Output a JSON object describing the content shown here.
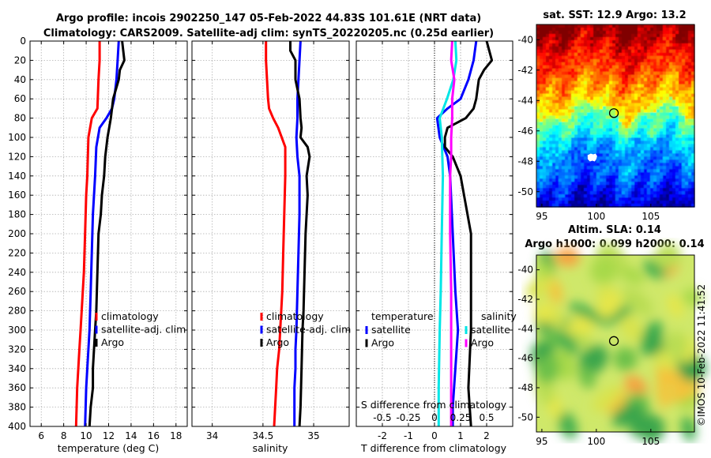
{
  "figure": {
    "title_line1": "Argo profile: incois 2902250_147 05-Feb-2022 44.83S 101.61E (NRT data)",
    "title_line2": "Climatology: CARS2009. Satellite-adj clim: synTS_20220205.nc (0.25d earlier)",
    "credit": "©IMOS 10-Feb-2022 11:41:52"
  },
  "chart_data": [
    {
      "id": "temperature",
      "type": "line",
      "xlabel": "temperature (deg C)",
      "xlim": [
        5,
        19
      ],
      "xticks": [
        6,
        8,
        10,
        12,
        14,
        16,
        18
      ],
      "ylim": [
        0,
        400
      ],
      "yticks": [
        0,
        20,
        40,
        60,
        80,
        100,
        120,
        140,
        160,
        180,
        200,
        220,
        240,
        260,
        280,
        300,
        320,
        340,
        360,
        380,
        400
      ],
      "yreversed": true,
      "grid": true,
      "legend": [
        "climatology",
        "satellite-adj. clim",
        "Argo"
      ],
      "series": [
        {
          "name": "climatology",
          "color": "#ff0000",
          "x": [
            11.2,
            11.2,
            11.1,
            11.0,
            10.5,
            10.2,
            10.1,
            10.0,
            9.9,
            9.8,
            9.7,
            9.6,
            9.5,
            9.4,
            9.3,
            9.2,
            9.1
          ],
          "y": [
            0,
            20,
            40,
            70,
            80,
            100,
            140,
            160,
            200,
            240,
            260,
            280,
            300,
            320,
            340,
            360,
            400
          ]
        },
        {
          "name": "satellite-adj. clim",
          "color": "#0000ff",
          "x": [
            12.9,
            12.8,
            12.7,
            12.5,
            12.3,
            11.8,
            11.2,
            10.9,
            10.8,
            10.6,
            10.5,
            10.4,
            10.3,
            10.2,
            10.1,
            10.0,
            9.9
          ],
          "y": [
            0,
            20,
            40,
            60,
            70,
            80,
            90,
            110,
            140,
            180,
            220,
            260,
            300,
            320,
            340,
            360,
            400
          ]
        },
        {
          "name": "Argo",
          "color": "#000000",
          "x": [
            13.2,
            13.3,
            13.4,
            13.0,
            12.9,
            12.4,
            12.2,
            11.9,
            11.7,
            11.6,
            11.4,
            11.3,
            11.1,
            11.0,
            10.9,
            10.8,
            10.7,
            10.6,
            10.6,
            10.4,
            10.3
          ],
          "y": [
            0,
            10,
            20,
            30,
            40,
            60,
            80,
            100,
            120,
            140,
            160,
            180,
            200,
            240,
            280,
            300,
            320,
            340,
            360,
            380,
            400
          ]
        }
      ]
    },
    {
      "id": "salinity",
      "type": "line",
      "xlabel": "salinity",
      "xlim": [
        33.8,
        35.35
      ],
      "xticks": [
        34,
        34.5,
        35
      ],
      "xticklabels": [
        "34",
        "34.5",
        "35"
      ],
      "ylim": [
        0,
        400
      ],
      "yreversed": true,
      "grid": true,
      "legend": [
        "climatology",
        "satellite-adj. clim",
        "Argo"
      ],
      "series": [
        {
          "name": "climatology",
          "color": "#ff0000",
          "x": [
            34.53,
            34.53,
            34.54,
            34.55,
            34.56,
            34.6,
            34.65,
            34.72,
            34.72,
            34.71,
            34.7,
            34.69,
            34.68,
            34.67,
            34.66,
            34.64,
            34.63,
            34.62,
            34.61
          ],
          "y": [
            0,
            20,
            40,
            60,
            70,
            80,
            90,
            110,
            140,
            180,
            220,
            260,
            280,
            300,
            320,
            340,
            360,
            380,
            400
          ]
        },
        {
          "name": "satellite-adj. clim",
          "color": "#0000ff",
          "x": [
            34.87,
            34.86,
            34.85,
            34.84,
            34.84,
            34.83,
            34.84,
            34.86,
            34.86,
            34.85,
            34.84,
            34.83,
            34.82,
            34.82,
            34.81,
            34.81
          ],
          "y": [
            0,
            20,
            40,
            60,
            80,
            100,
            120,
            140,
            180,
            220,
            260,
            300,
            320,
            340,
            360,
            400
          ]
        },
        {
          "name": "Argo",
          "color": "#000000",
          "x": [
            34.77,
            34.77,
            34.82,
            34.82,
            34.86,
            34.87,
            34.88,
            34.87,
            34.94,
            34.96,
            34.93,
            34.94,
            34.93,
            34.92,
            34.91,
            34.9,
            34.89,
            34.88,
            34.87,
            34.86
          ],
          "y": [
            0,
            10,
            20,
            40,
            60,
            80,
            90,
            100,
            110,
            120,
            140,
            160,
            180,
            200,
            240,
            280,
            300,
            340,
            380,
            400
          ]
        }
      ]
    },
    {
      "id": "difference",
      "type": "line",
      "xlabel": "T difference from climatology",
      "xlabel_top": "S difference from climatology",
      "xlim": [
        -3,
        3
      ],
      "xticks": [
        -2,
        -1,
        0,
        1,
        2
      ],
      "xticks_top": [
        -0.5,
        -0.25,
        0,
        0.25,
        0.5
      ],
      "xticklabels_top": [
        "-0.5",
        "-0.25",
        "0",
        "0.25",
        "0.5"
      ],
      "ylim": [
        0,
        400
      ],
      "yreversed": true,
      "grid": true,
      "zero_line": true,
      "legend_left": {
        "title": "temperature",
        "items": [
          "satellite",
          "Argo"
        ]
      },
      "legend_right": {
        "title": "salinity",
        "items": [
          "satellite",
          "Argo"
        ]
      },
      "series": [
        {
          "name": "T satellite",
          "color": "#0000ff",
          "x": [
            1.6,
            1.5,
            1.3,
            1.0,
            0.5,
            0.1,
            0.2,
            0.5,
            0.6,
            0.7,
            0.8,
            0.9,
            0.8,
            0.7,
            0.7
          ],
          "y": [
            0,
            20,
            40,
            60,
            70,
            80,
            100,
            120,
            140,
            200,
            260,
            300,
            340,
            380,
            400
          ]
        },
        {
          "name": "T Argo",
          "color": "#000000",
          "x": [
            2.0,
            2.1,
            2.2,
            1.9,
            1.7,
            1.6,
            1.5,
            1.2,
            0.5,
            0.4,
            0.4,
            0.7,
            1.0,
            1.4,
            1.4,
            1.4,
            1.3,
            1.4
          ],
          "y": [
            0,
            10,
            20,
            30,
            40,
            60,
            70,
            80,
            90,
            100,
            110,
            120,
            140,
            200,
            260,
            300,
            360,
            400
          ]
        },
        {
          "name": "S satellite",
          "color": "#00e6e6",
          "x": [
            0.2,
            0.21,
            0.18,
            0.12,
            0.05,
            0.07,
            0.08,
            0.07,
            0.06,
            0.05,
            0.04,
            0.04
          ],
          "y": [
            0,
            20,
            40,
            60,
            80,
            100,
            140,
            200,
            260,
            300,
            360,
            400
          ]
        },
        {
          "name": "S Argo",
          "color": "#ff00ff",
          "x": [
            0.17,
            0.16,
            0.19,
            0.17,
            0.17,
            0.16,
            0.16,
            0.15,
            0.15,
            0.16,
            0.16,
            0.16,
            0.16
          ],
          "y": [
            0,
            20,
            40,
            60,
            80,
            100,
            120,
            140,
            200,
            260,
            300,
            360,
            400
          ]
        }
      ]
    },
    {
      "id": "sst_map",
      "type": "heatmap",
      "title": "sat. SST: 12.9 Argo: 13.2",
      "xlim": [
        94.5,
        109
      ],
      "ylim": [
        -51,
        -39
      ],
      "xticks": [
        95,
        100,
        105
      ],
      "yticks": [
        -40,
        -42,
        -44,
        -46,
        -48,
        -50
      ],
      "profile_location": [
        101.61,
        -44.83
      ]
    },
    {
      "id": "sla_map",
      "type": "heatmap",
      "title_line1": "Altim. SLA: 0.14",
      "title_line2": "Argo h1000: 0.099 h2000: 0.14",
      "xlim": [
        94.5,
        109
      ],
      "ylim": [
        -51,
        -39
      ],
      "xticks": [
        95,
        100,
        105
      ],
      "yticks": [
        -40,
        -42,
        -44,
        -46,
        -48,
        -50
      ],
      "profile_location": [
        101.61,
        -44.83
      ]
    }
  ]
}
